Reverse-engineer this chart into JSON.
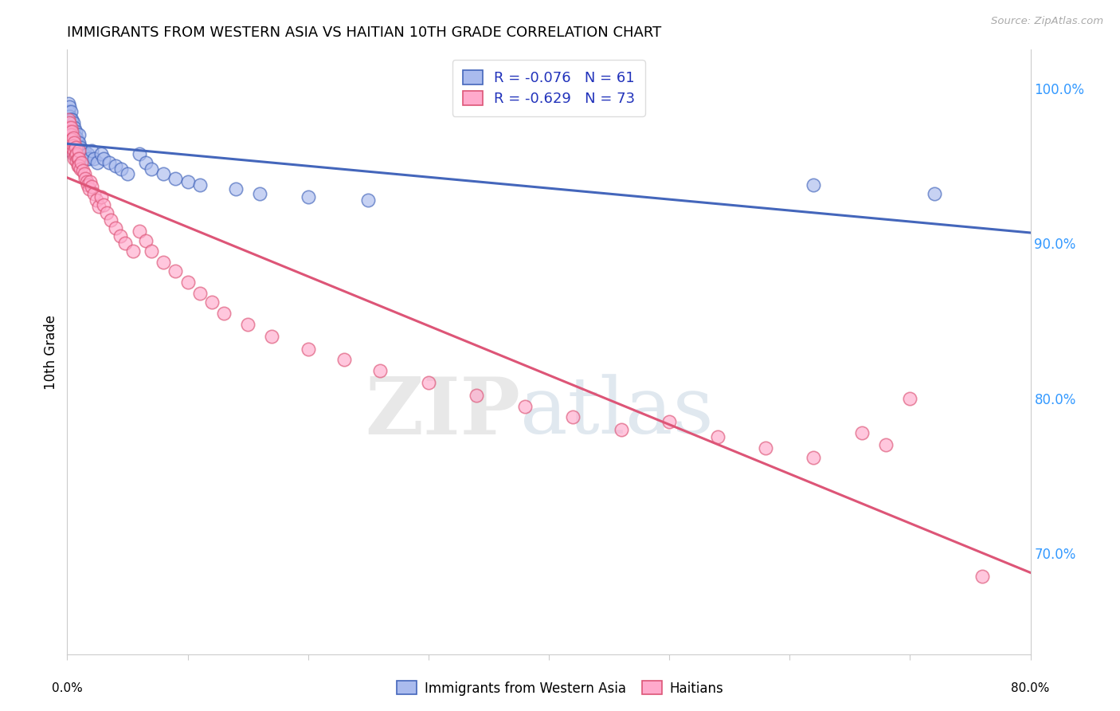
{
  "title": "IMMIGRANTS FROM WESTERN ASIA VS HAITIAN 10TH GRADE CORRELATION CHART",
  "source": "Source: ZipAtlas.com",
  "ylabel": "10th Grade",
  "ytick_labels": [
    "100.0%",
    "90.0%",
    "80.0%",
    "70.0%"
  ],
  "ytick_values": [
    1.0,
    0.9,
    0.8,
    0.7
  ],
  "xmin": 0.0,
  "xmax": 0.8,
  "ymin": 0.635,
  "ymax": 1.025,
  "legend_r_blue": "R = -0.076",
  "legend_n_blue": "N = 61",
  "legend_r_pink": "R = -0.629",
  "legend_n_pink": "N = 73",
  "label_blue": "Immigrants from Western Asia",
  "label_pink": "Haitians",
  "blue_fill": "#AABBEE",
  "pink_fill": "#FFAACC",
  "blue_edge": "#4466BB",
  "pink_edge": "#DD5577",
  "blue_line": "#4466BB",
  "pink_line": "#DD5577",
  "watermark_zip": "ZIP",
  "watermark_atlas": "atlas",
  "blue_scatter_x": [
    0.001,
    0.001,
    0.002,
    0.002,
    0.002,
    0.002,
    0.003,
    0.003,
    0.003,
    0.003,
    0.004,
    0.004,
    0.004,
    0.004,
    0.005,
    0.005,
    0.005,
    0.005,
    0.005,
    0.006,
    0.006,
    0.006,
    0.007,
    0.007,
    0.007,
    0.008,
    0.008,
    0.009,
    0.009,
    0.01,
    0.01,
    0.011,
    0.012,
    0.013,
    0.014,
    0.015,
    0.016,
    0.017,
    0.018,
    0.02,
    0.022,
    0.025,
    0.028,
    0.03,
    0.035,
    0.04,
    0.045,
    0.05,
    0.06,
    0.065,
    0.07,
    0.08,
    0.09,
    0.1,
    0.11,
    0.14,
    0.16,
    0.2,
    0.25,
    0.62,
    0.72
  ],
  "blue_scatter_y": [
    0.99,
    0.985,
    0.988,
    0.982,
    0.978,
    0.972,
    0.985,
    0.98,
    0.975,
    0.97,
    0.98,
    0.975,
    0.97,
    0.965,
    0.978,
    0.972,
    0.968,
    0.963,
    0.958,
    0.975,
    0.97,
    0.965,
    0.972,
    0.967,
    0.962,
    0.968,
    0.963,
    0.965,
    0.96,
    0.97,
    0.965,
    0.962,
    0.96,
    0.958,
    0.96,
    0.957,
    0.955,
    0.958,
    0.955,
    0.96,
    0.955,
    0.952,
    0.958,
    0.955,
    0.952,
    0.95,
    0.948,
    0.945,
    0.958,
    0.952,
    0.948,
    0.945,
    0.942,
    0.94,
    0.938,
    0.935,
    0.932,
    0.93,
    0.928,
    0.938,
    0.932
  ],
  "pink_scatter_x": [
    0.001,
    0.001,
    0.002,
    0.002,
    0.003,
    0.003,
    0.003,
    0.004,
    0.004,
    0.004,
    0.005,
    0.005,
    0.005,
    0.006,
    0.006,
    0.006,
    0.007,
    0.007,
    0.008,
    0.008,
    0.009,
    0.009,
    0.01,
    0.01,
    0.01,
    0.011,
    0.012,
    0.013,
    0.014,
    0.015,
    0.016,
    0.017,
    0.018,
    0.019,
    0.02,
    0.022,
    0.024,
    0.026,
    0.028,
    0.03,
    0.033,
    0.036,
    0.04,
    0.044,
    0.048,
    0.055,
    0.06,
    0.065,
    0.07,
    0.08,
    0.09,
    0.1,
    0.11,
    0.12,
    0.13,
    0.15,
    0.17,
    0.2,
    0.23,
    0.26,
    0.3,
    0.34,
    0.38,
    0.42,
    0.46,
    0.5,
    0.54,
    0.58,
    0.62,
    0.66,
    0.68,
    0.7,
    0.76
  ],
  "pink_scatter_y": [
    0.98,
    0.975,
    0.978,
    0.972,
    0.975,
    0.97,
    0.965,
    0.972,
    0.967,
    0.962,
    0.968,
    0.963,
    0.958,
    0.965,
    0.96,
    0.955,
    0.962,
    0.957,
    0.958,
    0.953,
    0.955,
    0.95,
    0.96,
    0.955,
    0.95,
    0.948,
    0.952,
    0.947,
    0.945,
    0.942,
    0.94,
    0.938,
    0.935,
    0.94,
    0.937,
    0.932,
    0.928,
    0.924,
    0.93,
    0.925,
    0.92,
    0.915,
    0.91,
    0.905,
    0.9,
    0.895,
    0.908,
    0.902,
    0.895,
    0.888,
    0.882,
    0.875,
    0.868,
    0.862,
    0.855,
    0.848,
    0.84,
    0.832,
    0.825,
    0.818,
    0.81,
    0.802,
    0.795,
    0.788,
    0.78,
    0.785,
    0.775,
    0.768,
    0.762,
    0.778,
    0.77,
    0.8,
    0.685
  ]
}
